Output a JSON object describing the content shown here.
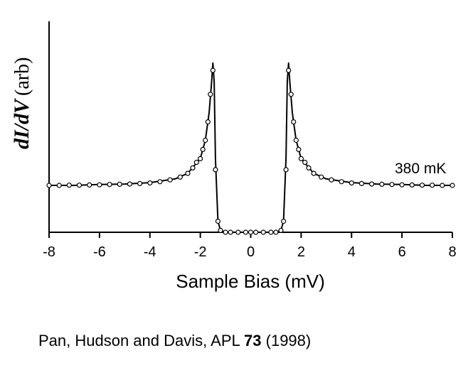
{
  "chart_data": {
    "type": "line",
    "xlabel": "Sample Bias (mV)",
    "ylabel": "dI/dV",
    "ylabel_unit": "(arb)",
    "xlim": [
      -8,
      8
    ],
    "ylim": [
      0,
      1.0
    ],
    "xticks": [
      "-8",
      "-6",
      "-4",
      "-2",
      "0",
      "2",
      "4",
      "6",
      "8"
    ],
    "grid": false,
    "annotation": "380 mK",
    "series": [
      {
        "style": "line",
        "x": [
          -8.0,
          -7.0,
          -6.0,
          -5.0,
          -4.0,
          -3.0,
          -2.5,
          -2.0,
          -1.8,
          -1.65,
          -1.55,
          -1.5,
          -1.45,
          -1.4,
          -1.3,
          -1.2,
          -1.0,
          0.0,
          1.0,
          1.2,
          1.3,
          1.4,
          1.45,
          1.5,
          1.55,
          1.65,
          1.8,
          2.0,
          2.5,
          3.0,
          4.0,
          5.0,
          6.0,
          7.0,
          8.0
        ],
        "y": [
          0.255,
          0.255,
          0.26,
          0.262,
          0.27,
          0.29,
          0.32,
          0.4,
          0.5,
          0.65,
          0.82,
          0.92,
          0.82,
          0.4,
          0.06,
          0.01,
          0.0,
          0.0,
          0.0,
          0.01,
          0.06,
          0.4,
          0.82,
          0.92,
          0.82,
          0.65,
          0.5,
          0.4,
          0.32,
          0.29,
          0.27,
          0.262,
          0.26,
          0.255,
          0.255
        ]
      },
      {
        "style": "points",
        "x": [
          -8.0,
          -7.6,
          -7.2,
          -6.8,
          -6.4,
          -6.0,
          -5.6,
          -5.2,
          -4.8,
          -4.4,
          -4.0,
          -3.6,
          -3.2,
          -2.8,
          -2.5,
          -2.3,
          -2.15,
          -2.0,
          -1.9,
          -1.8,
          -1.7,
          -1.6,
          -1.5,
          -1.4,
          -1.3,
          -1.2,
          -1.0,
          -0.8,
          -0.5,
          -0.2,
          0.0,
          0.2,
          0.5,
          0.8,
          1.0,
          1.2,
          1.3,
          1.4,
          1.5,
          1.6,
          1.7,
          1.8,
          1.9,
          2.0,
          2.15,
          2.3,
          2.5,
          2.8,
          3.2,
          3.6,
          4.0,
          4.4,
          4.8,
          5.2,
          5.6,
          6.0,
          6.4,
          6.8,
          7.2,
          7.6,
          8.0
        ],
        "y": [
          0.255,
          0.255,
          0.256,
          0.256,
          0.257,
          0.258,
          0.26,
          0.261,
          0.262,
          0.265,
          0.268,
          0.275,
          0.285,
          0.3,
          0.32,
          0.35,
          0.38,
          0.4,
          0.45,
          0.5,
          0.6,
          0.75,
          0.88,
          0.34,
          0.06,
          0.01,
          0.0,
          0.0,
          0.0,
          0.0,
          0.0,
          0.0,
          0.0,
          0.0,
          0.0,
          0.01,
          0.06,
          0.34,
          0.88,
          0.75,
          0.6,
          0.5,
          0.45,
          0.4,
          0.38,
          0.35,
          0.32,
          0.3,
          0.285,
          0.275,
          0.268,
          0.265,
          0.262,
          0.261,
          0.26,
          0.258,
          0.257,
          0.256,
          0.256,
          0.255,
          0.255
        ]
      }
    ]
  },
  "citation": {
    "text": "Pan, Hudson and Davis, APL ",
    "volume": "73",
    "year": " (1998)"
  }
}
